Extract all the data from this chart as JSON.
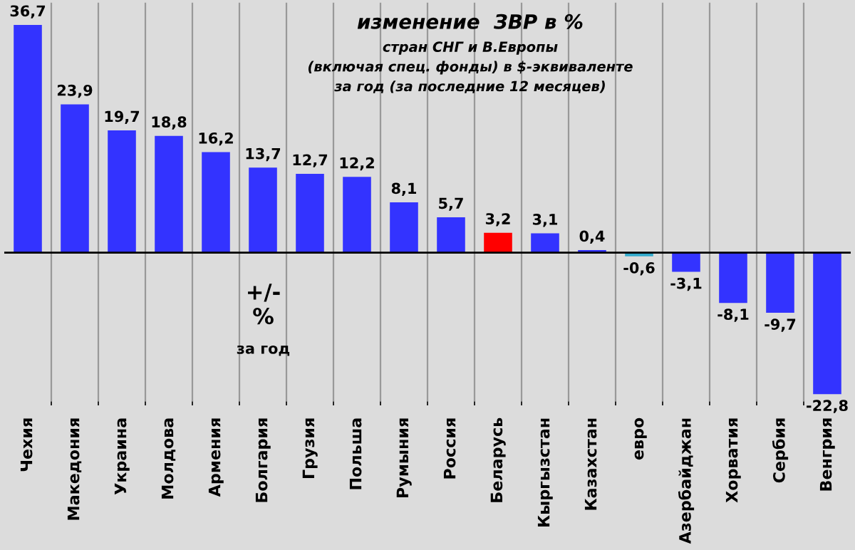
{
  "chart_data": {
    "type": "bar",
    "title": "изменение  ЗВР в %",
    "subtitle": "стран СНГ и В.Европы\n(включая спец. фонды) в $-эквиваленте\nза год (за последние 12 месяцев)",
    "categories": [
      "Чехия",
      "Македония",
      "Украина",
      "Молдова",
      "Армения",
      "Болгария",
      "Грузия",
      "Польша",
      "Румыния",
      "Россия",
      "Беларусь",
      "Кыргызстан",
      "Казахстан",
      "евро",
      "Азербайджан",
      "Хорватия",
      "Сербия",
      "Венгрия"
    ],
    "values": [
      36.7,
      23.9,
      19.7,
      18.8,
      16.2,
      13.7,
      12.7,
      12.2,
      8.1,
      5.7,
      3.2,
      3.1,
      0.4,
      -0.6,
      -3.1,
      -8.1,
      -9.7,
      -22.8
    ],
    "value_labels": [
      "36,7",
      "23,9",
      "19,7",
      "18,8",
      "16,2",
      "13,7",
      "12,7",
      "12,2",
      "8,1",
      "5,7",
      "3,2",
      "3,1",
      "0,4",
      "-0,6",
      "-3,1",
      "-8,1",
      "-9,7",
      "-22,8"
    ],
    "colors": [
      "#3333ff",
      "#3333ff",
      "#3333ff",
      "#3333ff",
      "#3333ff",
      "#3333ff",
      "#3333ff",
      "#3333ff",
      "#3333ff",
      "#3333ff",
      "#ff0000",
      "#3333ff",
      "#3333ff",
      "#33aacc",
      "#3333ff",
      "#3333ff",
      "#3333ff",
      "#3333ff"
    ],
    "annotations": [
      "+/-\n%",
      "за год"
    ],
    "grid": "x",
    "tick_labels": "x"
  }
}
